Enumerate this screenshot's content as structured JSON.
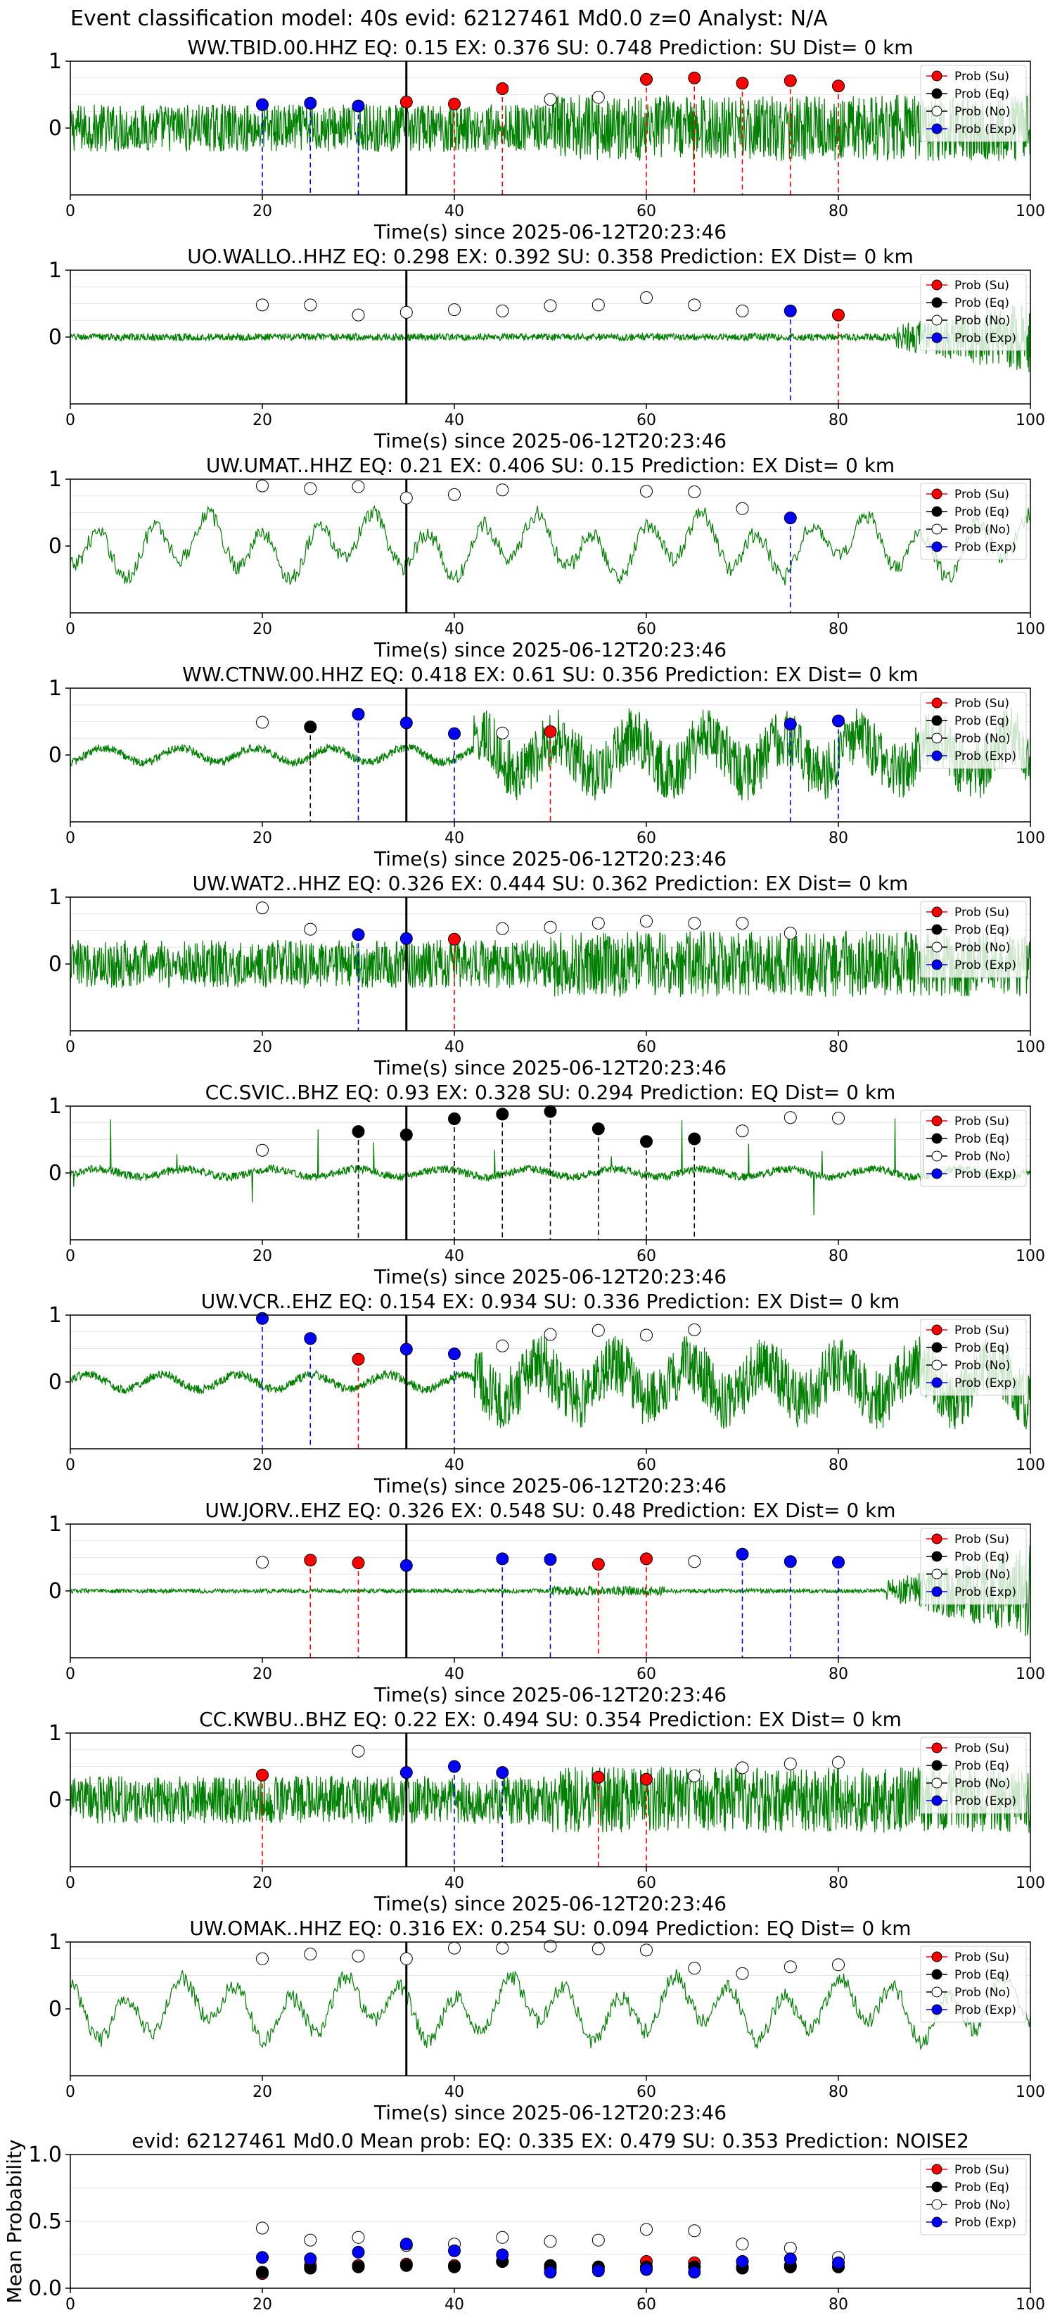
{
  "figure": {
    "suptitle": "Event classification model: 40s evid: 62127461 Md0.0 z=0 Analyst: N/A"
  },
  "legend": [
    "Prob (Su)",
    "Prob (Eq)",
    "Prob (No)",
    "Prob (Exp)"
  ],
  "colors": {
    "waveform": "#008000",
    "su": "#ff0000",
    "eq": "#000000",
    "no": "#ffffff",
    "exp": "#0000ff",
    "axis": "#000000",
    "grid": "#e6e6e6"
  },
  "chart_data": [
    {
      "type": "line",
      "title": "WW.TBID.00.HHZ   EQ: 0.15   EX: 0.376   SU: 0.748   Prediction: SU    Dist= 0 km",
      "xlabel": "Time(s) since 2025-06-12T20:23:46",
      "xlim": [
        0,
        100
      ],
      "ylim": [
        -1,
        1
      ],
      "xticks": [
        0,
        20,
        40,
        60,
        80,
        100
      ],
      "yticks": [
        1,
        0
      ],
      "pick_time": 35,
      "waveform": "high-frequency",
      "markers": [
        {
          "x": 20,
          "y": 0.35,
          "cls": "exp",
          "line": true
        },
        {
          "x": 25,
          "y": 0.37,
          "cls": "exp",
          "line": true
        },
        {
          "x": 30,
          "y": 0.33,
          "cls": "exp",
          "line": true
        },
        {
          "x": 35,
          "y": 0.39,
          "cls": "su",
          "line": false
        },
        {
          "x": 40,
          "y": 0.36,
          "cls": "su",
          "line": true
        },
        {
          "x": 45,
          "y": 0.59,
          "cls": "su",
          "line": true
        },
        {
          "x": 50,
          "y": 0.43,
          "cls": "no",
          "line": false
        },
        {
          "x": 55,
          "y": 0.46,
          "cls": "no",
          "line": false
        },
        {
          "x": 60,
          "y": 0.73,
          "cls": "su",
          "line": true
        },
        {
          "x": 65,
          "y": 0.75,
          "cls": "su",
          "line": true
        },
        {
          "x": 70,
          "y": 0.67,
          "cls": "su",
          "line": true
        },
        {
          "x": 75,
          "y": 0.71,
          "cls": "su",
          "line": true
        },
        {
          "x": 80,
          "y": 0.63,
          "cls": "su",
          "line": true
        }
      ]
    },
    {
      "type": "line",
      "title": "UO.WALLO..HHZ   EQ: 0.298   EX: 0.392   SU: 0.358   Prediction: EX    Dist= 0 km",
      "xlabel": "Time(s) since 2025-06-12T20:23:46",
      "xlim": [
        0,
        100
      ],
      "ylim": [
        -1,
        1
      ],
      "xticks": [
        0,
        20,
        40,
        60,
        80,
        100
      ],
      "yticks": [
        1,
        0
      ],
      "pick_time": 35,
      "waveform": "quiet",
      "markers": [
        {
          "x": 20,
          "y": 0.48,
          "cls": "no",
          "line": false
        },
        {
          "x": 25,
          "y": 0.48,
          "cls": "no",
          "line": false
        },
        {
          "x": 30,
          "y": 0.33,
          "cls": "no",
          "line": false
        },
        {
          "x": 35,
          "y": 0.37,
          "cls": "no",
          "line": false
        },
        {
          "x": 40,
          "y": 0.41,
          "cls": "no",
          "line": false
        },
        {
          "x": 45,
          "y": 0.39,
          "cls": "no",
          "line": false
        },
        {
          "x": 50,
          "y": 0.47,
          "cls": "no",
          "line": false
        },
        {
          "x": 55,
          "y": 0.48,
          "cls": "no",
          "line": false
        },
        {
          "x": 60,
          "y": 0.59,
          "cls": "no",
          "line": false
        },
        {
          "x": 65,
          "y": 0.48,
          "cls": "no",
          "line": false
        },
        {
          "x": 70,
          "y": 0.39,
          "cls": "no",
          "line": false
        },
        {
          "x": 75,
          "y": 0.39,
          "cls": "exp",
          "line": true
        },
        {
          "x": 80,
          "y": 0.33,
          "cls": "su",
          "line": true
        }
      ]
    },
    {
      "type": "line",
      "title": "UW.UMAT..HHZ   EQ: 0.21   EX: 0.406   SU: 0.15   Prediction: EX    Dist= 0 km",
      "xlabel": "Time(s) since 2025-06-12T20:23:46",
      "xlim": [
        0,
        100
      ],
      "ylim": [
        -1,
        1
      ],
      "xticks": [
        0,
        20,
        40,
        60,
        80,
        100
      ],
      "yticks": [
        1,
        0
      ],
      "pick_time": 35,
      "waveform": "low-frequency",
      "markers": [
        {
          "x": 20,
          "y": 0.9,
          "cls": "no",
          "line": false
        },
        {
          "x": 25,
          "y": 0.86,
          "cls": "no",
          "line": false
        },
        {
          "x": 30,
          "y": 0.89,
          "cls": "no",
          "line": false
        },
        {
          "x": 35,
          "y": 0.72,
          "cls": "no",
          "line": false
        },
        {
          "x": 40,
          "y": 0.77,
          "cls": "no",
          "line": false
        },
        {
          "x": 45,
          "y": 0.84,
          "cls": "no",
          "line": false
        },
        {
          "x": 60,
          "y": 0.82,
          "cls": "no",
          "line": false
        },
        {
          "x": 65,
          "y": 0.81,
          "cls": "no",
          "line": false
        },
        {
          "x": 70,
          "y": 0.56,
          "cls": "no",
          "line": false
        },
        {
          "x": 75,
          "y": 0.42,
          "cls": "exp",
          "line": true
        }
      ]
    },
    {
      "type": "line",
      "title": "WW.CTNW.00.HHZ   EQ: 0.418   EX: 0.61   SU: 0.356   Prediction: EX    Dist= 0 km",
      "xlabel": "Time(s) since 2025-06-12T20:23:46",
      "xlim": [
        0,
        100
      ],
      "ylim": [
        -1,
        1
      ],
      "xticks": [
        0,
        20,
        40,
        60,
        80,
        100
      ],
      "yticks": [
        1,
        0
      ],
      "pick_time": 35,
      "waveform": "mixed",
      "markers": [
        {
          "x": 20,
          "y": 0.49,
          "cls": "no",
          "line": false
        },
        {
          "x": 25,
          "y": 0.42,
          "cls": "eq",
          "line": true
        },
        {
          "x": 30,
          "y": 0.61,
          "cls": "exp",
          "line": true
        },
        {
          "x": 35,
          "y": 0.48,
          "cls": "exp",
          "line": false
        },
        {
          "x": 40,
          "y": 0.32,
          "cls": "exp",
          "line": true
        },
        {
          "x": 45,
          "y": 0.33,
          "cls": "no",
          "line": false
        },
        {
          "x": 50,
          "y": 0.35,
          "cls": "su",
          "line": true
        },
        {
          "x": 75,
          "y": 0.46,
          "cls": "exp",
          "line": true
        },
        {
          "x": 80,
          "y": 0.51,
          "cls": "exp",
          "line": true
        }
      ]
    },
    {
      "type": "line",
      "title": "UW.WAT2..HHZ   EQ: 0.326   EX: 0.444   SU: 0.362   Prediction: EX    Dist= 0 km",
      "xlabel": "Time(s) since 2025-06-12T20:23:46",
      "xlim": [
        0,
        100
      ],
      "ylim": [
        -1,
        1
      ],
      "xticks": [
        0,
        20,
        40,
        60,
        80,
        100
      ],
      "yticks": [
        1,
        0
      ],
      "pick_time": 35,
      "waveform": "high-frequency",
      "markers": [
        {
          "x": 20,
          "y": 0.84,
          "cls": "no",
          "line": false
        },
        {
          "x": 25,
          "y": 0.52,
          "cls": "no",
          "line": false
        },
        {
          "x": 30,
          "y": 0.44,
          "cls": "exp",
          "line": true
        },
        {
          "x": 35,
          "y": 0.38,
          "cls": "exp",
          "line": false
        },
        {
          "x": 40,
          "y": 0.37,
          "cls": "su",
          "line": true
        },
        {
          "x": 45,
          "y": 0.53,
          "cls": "no",
          "line": false
        },
        {
          "x": 50,
          "y": 0.55,
          "cls": "no",
          "line": false
        },
        {
          "x": 55,
          "y": 0.61,
          "cls": "no",
          "line": false
        },
        {
          "x": 60,
          "y": 0.64,
          "cls": "no",
          "line": false
        },
        {
          "x": 65,
          "y": 0.61,
          "cls": "no",
          "line": false
        },
        {
          "x": 70,
          "y": 0.61,
          "cls": "no",
          "line": false
        },
        {
          "x": 75,
          "y": 0.46,
          "cls": "no",
          "line": false
        }
      ]
    },
    {
      "type": "line",
      "title": "CC.SVIC..BHZ   EQ: 0.93   EX: 0.328   SU: 0.294   Prediction: EQ    Dist= 0 km",
      "xlabel": "Time(s) since 2025-06-12T20:23:46",
      "xlim": [
        0,
        100
      ],
      "ylim": [
        -1,
        1
      ],
      "xticks": [
        0,
        20,
        40,
        60,
        80,
        100
      ],
      "yticks": [
        1,
        0
      ],
      "pick_time": 35,
      "waveform": "spiky-quiet",
      "markers": [
        {
          "x": 20,
          "y": 0.34,
          "cls": "no",
          "line": false
        },
        {
          "x": 30,
          "y": 0.62,
          "cls": "eq",
          "line": true
        },
        {
          "x": 35,
          "y": 0.57,
          "cls": "eq",
          "line": false
        },
        {
          "x": 40,
          "y": 0.81,
          "cls": "eq",
          "line": true
        },
        {
          "x": 45,
          "y": 0.88,
          "cls": "eq",
          "line": true
        },
        {
          "x": 50,
          "y": 0.92,
          "cls": "eq",
          "line": true
        },
        {
          "x": 55,
          "y": 0.66,
          "cls": "eq",
          "line": true
        },
        {
          "x": 60,
          "y": 0.47,
          "cls": "eq",
          "line": true
        },
        {
          "x": 65,
          "y": 0.51,
          "cls": "eq",
          "line": true
        },
        {
          "x": 70,
          "y": 0.63,
          "cls": "no",
          "line": false
        },
        {
          "x": 75,
          "y": 0.83,
          "cls": "no",
          "line": false
        },
        {
          "x": 80,
          "y": 0.82,
          "cls": "no",
          "line": false
        }
      ]
    },
    {
      "type": "line",
      "title": "UW.VCR..EHZ   EQ: 0.154   EX: 0.934   SU: 0.336   Prediction: EX    Dist= 0 km",
      "xlabel": "Time(s) since 2025-06-12T20:23:46",
      "xlim": [
        0,
        100
      ],
      "ylim": [
        -1,
        1
      ],
      "xticks": [
        0,
        20,
        40,
        60,
        80,
        100
      ],
      "yticks": [
        1,
        0
      ],
      "pick_time": 35,
      "waveform": "mixed",
      "markers": [
        {
          "x": 20,
          "y": 0.95,
          "cls": "exp",
          "line": true
        },
        {
          "x": 25,
          "y": 0.65,
          "cls": "exp",
          "line": true
        },
        {
          "x": 30,
          "y": 0.34,
          "cls": "su",
          "line": true
        },
        {
          "x": 35,
          "y": 0.49,
          "cls": "exp",
          "line": false
        },
        {
          "x": 40,
          "y": 0.42,
          "cls": "exp",
          "line": true
        },
        {
          "x": 45,
          "y": 0.54,
          "cls": "no",
          "line": false
        },
        {
          "x": 50,
          "y": 0.71,
          "cls": "no",
          "line": false
        },
        {
          "x": 55,
          "y": 0.77,
          "cls": "no",
          "line": false
        },
        {
          "x": 60,
          "y": 0.7,
          "cls": "no",
          "line": false
        },
        {
          "x": 65,
          "y": 0.78,
          "cls": "no",
          "line": false
        }
      ]
    },
    {
      "type": "line",
      "title": "UW.JORV..EHZ   EQ: 0.326   EX: 0.548   SU: 0.48   Prediction: EX    Dist= 0 km",
      "xlabel": "Time(s) since 2025-06-12T20:23:46",
      "xlim": [
        0,
        100
      ],
      "ylim": [
        -1,
        1
      ],
      "xticks": [
        0,
        20,
        40,
        60,
        80,
        100
      ],
      "yticks": [
        1,
        0
      ],
      "pick_time": 35,
      "waveform": "quiet-then-loud",
      "markers": [
        {
          "x": 20,
          "y": 0.43,
          "cls": "no",
          "line": false
        },
        {
          "x": 25,
          "y": 0.46,
          "cls": "su",
          "line": true
        },
        {
          "x": 30,
          "y": 0.42,
          "cls": "su",
          "line": true
        },
        {
          "x": 35,
          "y": 0.38,
          "cls": "exp",
          "line": false
        },
        {
          "x": 45,
          "y": 0.48,
          "cls": "exp",
          "line": true
        },
        {
          "x": 50,
          "y": 0.47,
          "cls": "exp",
          "line": true
        },
        {
          "x": 55,
          "y": 0.4,
          "cls": "su",
          "line": true
        },
        {
          "x": 60,
          "y": 0.48,
          "cls": "su",
          "line": true
        },
        {
          "x": 65,
          "y": 0.44,
          "cls": "no",
          "line": false
        },
        {
          "x": 70,
          "y": 0.55,
          "cls": "exp",
          "line": true
        },
        {
          "x": 75,
          "y": 0.44,
          "cls": "exp",
          "line": true
        },
        {
          "x": 80,
          "y": 0.43,
          "cls": "exp",
          "line": true
        }
      ]
    },
    {
      "type": "line",
      "title": "CC.KWBU..BHZ   EQ: 0.22   EX: 0.494   SU: 0.354   Prediction: EX    Dist= 0 km",
      "xlabel": "Time(s) since 2025-06-12T20:23:46",
      "xlim": [
        0,
        100
      ],
      "ylim": [
        -1,
        1
      ],
      "xticks": [
        0,
        20,
        40,
        60,
        80,
        100
      ],
      "yticks": [
        1,
        0
      ],
      "pick_time": 35,
      "waveform": "high-frequency",
      "markers": [
        {
          "x": 20,
          "y": 0.37,
          "cls": "su",
          "line": true
        },
        {
          "x": 30,
          "y": 0.73,
          "cls": "no",
          "line": false
        },
        {
          "x": 35,
          "y": 0.41,
          "cls": "exp",
          "line": false
        },
        {
          "x": 40,
          "y": 0.5,
          "cls": "exp",
          "line": true
        },
        {
          "x": 45,
          "y": 0.41,
          "cls": "exp",
          "line": true
        },
        {
          "x": 55,
          "y": 0.34,
          "cls": "su",
          "line": true
        },
        {
          "x": 60,
          "y": 0.31,
          "cls": "su",
          "line": true
        },
        {
          "x": 65,
          "y": 0.36,
          "cls": "no",
          "line": false
        },
        {
          "x": 70,
          "y": 0.48,
          "cls": "no",
          "line": false
        },
        {
          "x": 75,
          "y": 0.54,
          "cls": "no",
          "line": false
        },
        {
          "x": 80,
          "y": 0.56,
          "cls": "no",
          "line": false
        }
      ]
    },
    {
      "type": "line",
      "title": "UW.OMAK..HHZ   EQ: 0.316   EX: 0.254   SU: 0.094   Prediction: EQ    Dist= 0 km",
      "xlabel": "Time(s) since 2025-06-12T20:23:46",
      "xlim": [
        0,
        100
      ],
      "ylim": [
        -1,
        1
      ],
      "xticks": [
        0,
        20,
        40,
        60,
        80,
        100
      ],
      "yticks": [
        1,
        0
      ],
      "pick_time": 35,
      "waveform": "low-frequency",
      "markers": [
        {
          "x": 20,
          "y": 0.75,
          "cls": "no",
          "line": false
        },
        {
          "x": 25,
          "y": 0.82,
          "cls": "no",
          "line": false
        },
        {
          "x": 30,
          "y": 0.79,
          "cls": "no",
          "line": false
        },
        {
          "x": 35,
          "y": 0.75,
          "cls": "no",
          "line": false
        },
        {
          "x": 40,
          "y": 0.91,
          "cls": "no",
          "line": false
        },
        {
          "x": 45,
          "y": 0.91,
          "cls": "no",
          "line": false
        },
        {
          "x": 50,
          "y": 0.94,
          "cls": "no",
          "line": false
        },
        {
          "x": 55,
          "y": 0.9,
          "cls": "no",
          "line": false
        },
        {
          "x": 60,
          "y": 0.88,
          "cls": "no",
          "line": false
        },
        {
          "x": 65,
          "y": 0.61,
          "cls": "no",
          "line": false
        },
        {
          "x": 70,
          "y": 0.53,
          "cls": "no",
          "line": false
        },
        {
          "x": 75,
          "y": 0.63,
          "cls": "no",
          "line": false
        },
        {
          "x": 80,
          "y": 0.66,
          "cls": "no",
          "line": false
        }
      ]
    },
    {
      "type": "scatter",
      "title": "evid: 62127461  Md0.0   Mean prob:   EQ: 0.335  EX: 0.479  SU: 0.353   Prediction: NOISE2",
      "xlabel": "",
      "ylabel": "Mean Probability",
      "xlim": [
        0,
        100
      ],
      "ylim": [
        0,
        1
      ],
      "xticks": [
        0,
        20,
        40,
        60,
        80,
        100
      ],
      "yticks": [
        1.0,
        0.5,
        0.0
      ],
      "ytick_labels": [
        "1.0",
        "0.5",
        "0.0"
      ],
      "x": [
        20,
        25,
        30,
        35,
        40,
        45,
        50,
        55,
        60,
        65,
        70,
        75,
        80
      ],
      "series": [
        {
          "name": "Prob (Su)",
          "cls": "su",
          "values": [
            0.11,
            0.17,
            0.17,
            0.18,
            0.17,
            0.2,
            0.15,
            0.15,
            0.2,
            0.19,
            0.16,
            0.17,
            0.16
          ]
        },
        {
          "name": "Prob (Eq)",
          "cls": "eq",
          "values": [
            0.12,
            0.15,
            0.16,
            0.17,
            0.16,
            0.2,
            0.17,
            0.16,
            0.16,
            0.16,
            0.15,
            0.16,
            0.16
          ]
        },
        {
          "name": "Prob (No)",
          "cls": "no",
          "values": [
            0.45,
            0.36,
            0.38,
            0.32,
            0.33,
            0.38,
            0.35,
            0.36,
            0.44,
            0.43,
            0.33,
            0.3,
            0.23
          ]
        },
        {
          "name": "Prob (Exp)",
          "cls": "exp",
          "values": [
            0.23,
            0.22,
            0.27,
            0.33,
            0.28,
            0.25,
            0.12,
            0.13,
            0.14,
            0.12,
            0.2,
            0.22,
            0.19
          ]
        }
      ]
    }
  ]
}
